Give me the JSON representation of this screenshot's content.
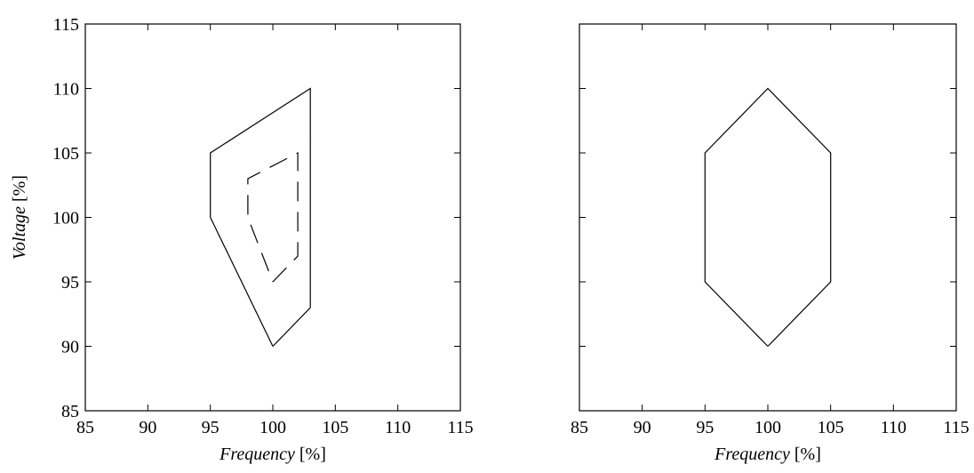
{
  "chart_data": [
    {
      "type": "line",
      "xlabel": "Frequency",
      "xunit": " [%]",
      "ylabel": "Voltage",
      "yunit": " [%]",
      "xlim": [
        85,
        115
      ],
      "ylim": [
        85,
        115
      ],
      "xticks": [
        "85",
        "90",
        "95",
        "100",
        "105",
        "110",
        "115"
      ],
      "yticks": [
        "85",
        "90",
        "95",
        "100",
        "105",
        "110",
        "115"
      ],
      "series": [
        {
          "style": "solid",
          "points": [
            [
              100,
              90
            ],
            [
              95,
              100
            ],
            [
              95,
              105
            ],
            [
              103,
              110
            ],
            [
              103,
              93
            ],
            [
              100,
              90
            ]
          ]
        },
        {
          "style": "dashed",
          "points": [
            [
              100,
              95
            ],
            [
              102,
              97
            ],
            [
              102,
              105
            ],
            [
              98,
              103
            ],
            [
              98,
              100
            ],
            [
              100,
              95
            ]
          ]
        }
      ]
    },
    {
      "type": "line",
      "xlabel": "Frequency",
      "xunit": " [%]",
      "ylabel": "",
      "yunit": "",
      "xlim": [
        85,
        115
      ],
      "ylim": [
        85,
        115
      ],
      "xticks": [
        "85",
        "90",
        "95",
        "100",
        "105",
        "110",
        "115"
      ],
      "yticks": [],
      "series": [
        {
          "style": "solid",
          "points": [
            [
              100,
              90
            ],
            [
              95,
              95
            ],
            [
              95,
              105
            ],
            [
              100,
              110
            ],
            [
              105,
              105
            ],
            [
              105,
              95
            ],
            [
              100,
              90
            ]
          ]
        }
      ]
    }
  ]
}
